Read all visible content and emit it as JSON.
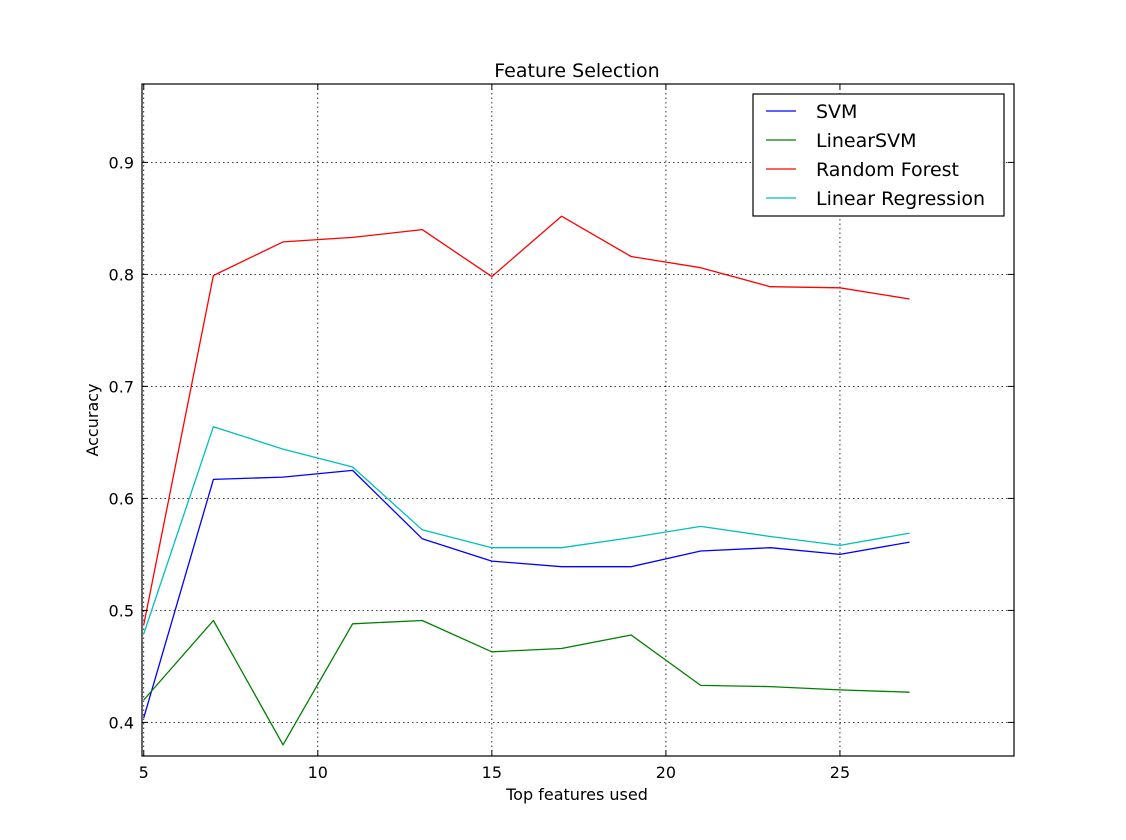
{
  "chart_data": {
    "type": "line",
    "title": "Feature Selection",
    "xlabel": "Top features used",
    "ylabel": "Accuracy",
    "xlim": [
      4.95,
      30
    ],
    "ylim": [
      0.37,
      0.97
    ],
    "xticks": [
      5,
      10,
      15,
      20,
      25
    ],
    "yticks": [
      0.4,
      0.5,
      0.6,
      0.7,
      0.8,
      0.9
    ],
    "grid": true,
    "legend_position": "top-right",
    "x": [
      5,
      7,
      9,
      11,
      13,
      15,
      17,
      19,
      21,
      23,
      25,
      27
    ],
    "series": [
      {
        "name": "SVM",
        "color": "#0000ff",
        "values": [
          0.404,
          0.617,
          0.619,
          0.625,
          0.564,
          0.544,
          0.539,
          0.539,
          0.553,
          0.556,
          0.55,
          0.561
        ]
      },
      {
        "name": "LinearSVM",
        "color": "#008000",
        "values": [
          0.42,
          0.491,
          0.38,
          0.488,
          0.491,
          0.463,
          0.466,
          0.478,
          0.433,
          0.432,
          0.429,
          0.427
        ]
      },
      {
        "name": "Random Forest",
        "color": "#ff0000",
        "values": [
          0.487,
          0.799,
          0.829,
          0.833,
          0.84,
          0.798,
          0.852,
          0.816,
          0.806,
          0.789,
          0.788,
          0.778
        ]
      },
      {
        "name": "Linear Regression",
        "color": "#00bfbf",
        "values": [
          0.479,
          0.664,
          0.644,
          0.628,
          0.572,
          0.556,
          0.556,
          0.565,
          0.575,
          0.566,
          0.558,
          0.569
        ]
      }
    ]
  }
}
